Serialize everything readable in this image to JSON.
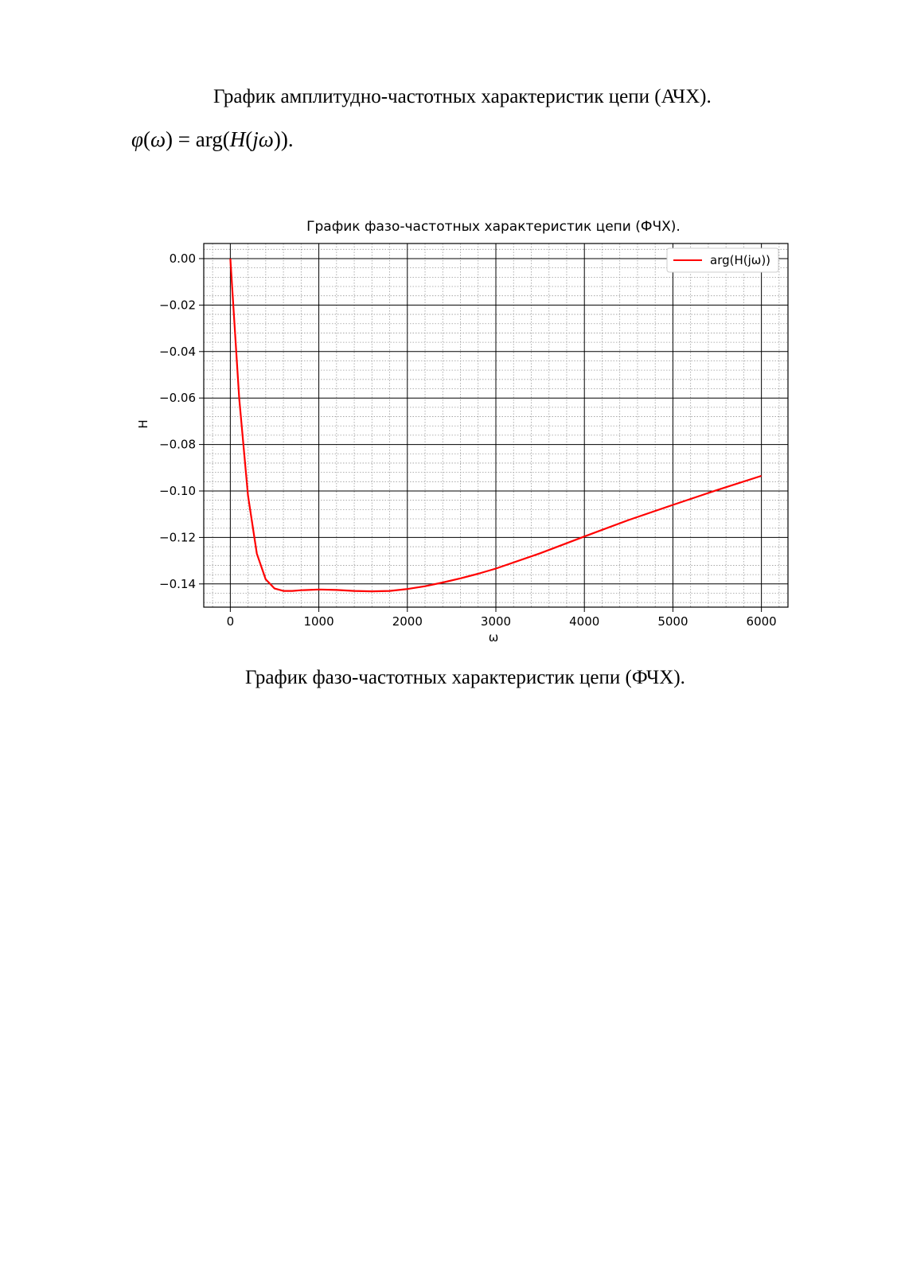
{
  "document": {
    "caption_top": "График амплитудно-частотных характеристик цепи (АЧХ).",
    "formula": {
      "phi": "φ",
      "omega": "ω",
      "open_paren": "(",
      "close_paren": ")",
      "equals": " = ",
      "arg": "arg",
      "H": "H",
      "j": "j",
      "end": "."
    },
    "caption_bottom": "График фазо-частотных характеристик цепи (ФЧХ)."
  },
  "chart_data": {
    "type": "line",
    "title": "График фазо-частотных характеристик цепи (ФЧХ).",
    "xlabel": "ω",
    "ylabel": "H",
    "xlim": [
      -300,
      6300
    ],
    "ylim": [
      -0.15,
      0.0065
    ],
    "x_ticks": [
      0,
      1000,
      2000,
      3000,
      4000,
      5000,
      6000
    ],
    "y_ticks": [
      0.0,
      -0.02,
      -0.04,
      -0.06,
      -0.08,
      -0.1,
      -0.12,
      -0.14
    ],
    "x_tick_labels": [
      "0",
      "1000",
      "2000",
      "3000",
      "4000",
      "5000",
      "6000"
    ],
    "y_tick_labels": [
      "0.00",
      "−0.02",
      "−0.04",
      "−0.06",
      "−0.08",
      "−0.10",
      "−0.12",
      "−0.14"
    ],
    "grid": true,
    "minor_grid": true,
    "legend_position": "top-right",
    "series": [
      {
        "name": "arg(H(jω))",
        "color": "#ff0000",
        "x": [
          0,
          100,
          200,
          300,
          400,
          500,
          600,
          700,
          800,
          1000,
          1200,
          1400,
          1600,
          1800,
          2000,
          2200,
          2400,
          2600,
          2800,
          3000,
          3500,
          4000,
          4500,
          5000,
          5500,
          6000
        ],
        "y": [
          0.0,
          -0.06,
          -0.102,
          -0.127,
          -0.138,
          -0.142,
          -0.143,
          -0.143,
          -0.1427,
          -0.1424,
          -0.1426,
          -0.143,
          -0.1432,
          -0.143,
          -0.1422,
          -0.141,
          -0.1394,
          -0.1376,
          -0.1356,
          -0.1334,
          -0.1268,
          -0.1196,
          -0.1125,
          -0.106,
          -0.0996,
          -0.0935
        ]
      }
    ]
  }
}
